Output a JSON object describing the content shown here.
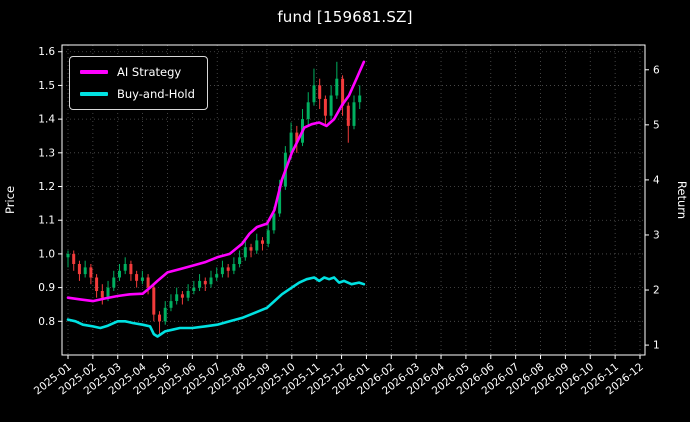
{
  "chart_data": {
    "type": "candlestick+line",
    "title": "fund [159681.SZ]",
    "background": "#000000",
    "text_color": "#ffffff",
    "grid": {
      "on": true,
      "color": "#6f6f6f",
      "style": "dotted"
    },
    "x_axis": {
      "tick_labels": [
        "2025-01",
        "2025-02",
        "2025-03",
        "2025-04",
        "2025-05",
        "2025-06",
        "2025-07",
        "2025-08",
        "2025-09",
        "2025-10",
        "2025-11",
        "2025-12",
        "2026-01",
        "2026-02",
        "2026-03",
        "2026-04",
        "2026-05",
        "2026-06",
        "2026-07",
        "2026-08",
        "2026-09",
        "2026-10",
        "2026-11",
        "2026-12"
      ]
    },
    "price_axis": {
      "label": "Price",
      "ticks": [
        "0.8",
        "0.9",
        "1.0",
        "1.1",
        "1.2",
        "1.3",
        "1.4",
        "1.5",
        "1.6"
      ],
      "ylim": [
        0.7,
        1.62
      ]
    },
    "return_axis": {
      "label": "Return",
      "ticks": [
        "1",
        "2",
        "3",
        "4",
        "5",
        "6"
      ],
      "ylim": [
        0.82,
        6.45
      ]
    },
    "legend": {
      "position": "upper left",
      "entries": [
        {
          "label": "AI Strategy",
          "color": "#ff00ff"
        },
        {
          "label": "Buy-and-Hold",
          "color": "#00e1e1"
        }
      ]
    },
    "candles": {
      "up_color": "#00b060",
      "down_color": "#f23b3b",
      "axis": "price",
      "format": "[months_since_2025-01, open, high, low, close]",
      "ohlc": [
        [
          0.0,
          0.99,
          1.01,
          0.96,
          1.0
        ],
        [
          0.23,
          1.0,
          1.01,
          0.95,
          0.97
        ],
        [
          0.46,
          0.97,
          0.98,
          0.92,
          0.94
        ],
        [
          0.69,
          0.94,
          0.98,
          0.93,
          0.96
        ],
        [
          0.92,
          0.96,
          0.97,
          0.91,
          0.93
        ],
        [
          1.15,
          0.93,
          0.94,
          0.87,
          0.89
        ],
        [
          1.38,
          0.89,
          0.91,
          0.85,
          0.87
        ],
        [
          1.61,
          0.87,
          0.92,
          0.86,
          0.9
        ],
        [
          1.84,
          0.9,
          0.95,
          0.89,
          0.93
        ],
        [
          2.07,
          0.93,
          0.97,
          0.92,
          0.95
        ],
        [
          2.3,
          0.95,
          0.99,
          0.94,
          0.97
        ],
        [
          2.53,
          0.97,
          0.98,
          0.92,
          0.94
        ],
        [
          2.76,
          0.94,
          0.95,
          0.9,
          0.92
        ],
        [
          2.99,
          0.92,
          0.95,
          0.91,
          0.93
        ],
        [
          3.22,
          0.93,
          0.94,
          0.88,
          0.9
        ],
        [
          3.45,
          0.9,
          0.91,
          0.8,
          0.82
        ],
        [
          3.68,
          0.82,
          0.83,
          0.76,
          0.8
        ],
        [
          3.91,
          0.8,
          0.86,
          0.79,
          0.84
        ],
        [
          4.14,
          0.84,
          0.88,
          0.83,
          0.86
        ],
        [
          4.37,
          0.86,
          0.9,
          0.85,
          0.88
        ],
        [
          4.6,
          0.88,
          0.89,
          0.85,
          0.87
        ],
        [
          4.83,
          0.87,
          0.91,
          0.86,
          0.89
        ],
        [
          5.06,
          0.89,
          0.92,
          0.88,
          0.9
        ],
        [
          5.29,
          0.9,
          0.94,
          0.89,
          0.92
        ],
        [
          5.52,
          0.92,
          0.93,
          0.89,
          0.91
        ],
        [
          5.75,
          0.91,
          0.95,
          0.9,
          0.93
        ],
        [
          5.98,
          0.93,
          0.96,
          0.92,
          0.94
        ],
        [
          6.21,
          0.94,
          0.98,
          0.93,
          0.96
        ],
        [
          6.44,
          0.96,
          0.97,
          0.93,
          0.95
        ],
        [
          6.67,
          0.95,
          0.99,
          0.94,
          0.97
        ],
        [
          6.9,
          0.97,
          1.01,
          0.96,
          0.99
        ],
        [
          7.13,
          0.99,
          1.04,
          0.98,
          1.02
        ],
        [
          7.36,
          1.02,
          1.03,
          0.99,
          1.01
        ],
        [
          7.59,
          1.01,
          1.06,
          1.0,
          1.04
        ],
        [
          7.82,
          1.04,
          1.05,
          1.01,
          1.03
        ],
        [
          8.05,
          1.03,
          1.09,
          1.02,
          1.07
        ],
        [
          8.28,
          1.07,
          1.14,
          1.06,
          1.12
        ],
        [
          8.51,
          1.12,
          1.22,
          1.11,
          1.2
        ],
        [
          8.74,
          1.2,
          1.32,
          1.19,
          1.3
        ],
        [
          8.97,
          1.3,
          1.39,
          1.28,
          1.36
        ],
        [
          9.2,
          1.36,
          1.38,
          1.3,
          1.33
        ],
        [
          9.43,
          1.33,
          1.43,
          1.32,
          1.4
        ],
        [
          9.66,
          1.4,
          1.48,
          1.38,
          1.45
        ],
        [
          9.89,
          1.45,
          1.55,
          1.44,
          1.5
        ],
        [
          10.12,
          1.5,
          1.52,
          1.43,
          1.46
        ],
        [
          10.35,
          1.46,
          1.47,
          1.38,
          1.41
        ],
        [
          10.58,
          1.41,
          1.5,
          1.4,
          1.47
        ],
        [
          10.81,
          1.47,
          1.57,
          1.46,
          1.52
        ],
        [
          11.04,
          1.52,
          1.53,
          1.41,
          1.44
        ],
        [
          11.27,
          1.44,
          1.45,
          1.33,
          1.38
        ],
        [
          11.5,
          1.38,
          1.47,
          1.37,
          1.45
        ],
        [
          11.73,
          1.45,
          1.5,
          1.43,
          1.47
        ]
      ]
    },
    "series": [
      {
        "name": "AI Strategy",
        "color": "#ff00ff",
        "axis": "price",
        "points": [
          [
            0,
            0.87
          ],
          [
            0.5,
            0.865
          ],
          [
            1,
            0.86
          ],
          [
            1.5,
            0.868
          ],
          [
            2,
            0.875
          ],
          [
            2.5,
            0.88
          ],
          [
            3,
            0.882
          ],
          [
            3.3,
            0.9
          ],
          [
            3.6,
            0.92
          ],
          [
            4,
            0.945
          ],
          [
            4.5,
            0.955
          ],
          [
            5,
            0.965
          ],
          [
            5.5,
            0.975
          ],
          [
            6,
            0.99
          ],
          [
            6.5,
            1.0
          ],
          [
            7,
            1.03
          ],
          [
            7.3,
            1.06
          ],
          [
            7.6,
            1.08
          ],
          [
            8,
            1.09
          ],
          [
            8.3,
            1.13
          ],
          [
            8.6,
            1.22
          ],
          [
            8.8,
            1.26
          ],
          [
            9,
            1.3
          ],
          [
            9.2,
            1.33
          ],
          [
            9.5,
            1.375
          ],
          [
            9.8,
            1.385
          ],
          [
            10.1,
            1.39
          ],
          [
            10.4,
            1.38
          ],
          [
            10.7,
            1.4
          ],
          [
            11,
            1.44
          ],
          [
            11.3,
            1.47
          ],
          [
            11.6,
            1.52
          ],
          [
            11.9,
            1.57
          ]
        ]
      },
      {
        "name": "Buy-and-Hold",
        "color": "#00e1e1",
        "axis": "price",
        "points": [
          [
            0,
            0.805
          ],
          [
            0.3,
            0.8
          ],
          [
            0.6,
            0.79
          ],
          [
            1,
            0.785
          ],
          [
            1.3,
            0.78
          ],
          [
            1.6,
            0.787
          ],
          [
            2,
            0.8
          ],
          [
            2.3,
            0.8
          ],
          [
            2.6,
            0.795
          ],
          [
            3,
            0.79
          ],
          [
            3.3,
            0.785
          ],
          [
            3.45,
            0.762
          ],
          [
            3.6,
            0.755
          ],
          [
            3.9,
            0.77
          ],
          [
            4.2,
            0.775
          ],
          [
            4.5,
            0.78
          ],
          [
            5,
            0.78
          ],
          [
            5.5,
            0.785
          ],
          [
            6,
            0.79
          ],
          [
            6.5,
            0.8
          ],
          [
            7,
            0.81
          ],
          [
            7.5,
            0.825
          ],
          [
            8,
            0.84
          ],
          [
            8.3,
            0.86
          ],
          [
            8.6,
            0.88
          ],
          [
            9,
            0.9
          ],
          [
            9.3,
            0.915
          ],
          [
            9.6,
            0.925
          ],
          [
            9.9,
            0.93
          ],
          [
            10.1,
            0.92
          ],
          [
            10.3,
            0.93
          ],
          [
            10.5,
            0.925
          ],
          [
            10.7,
            0.93
          ],
          [
            10.9,
            0.915
          ],
          [
            11.1,
            0.92
          ],
          [
            11.4,
            0.91
          ],
          [
            11.7,
            0.915
          ],
          [
            11.9,
            0.91
          ]
        ]
      }
    ]
  }
}
